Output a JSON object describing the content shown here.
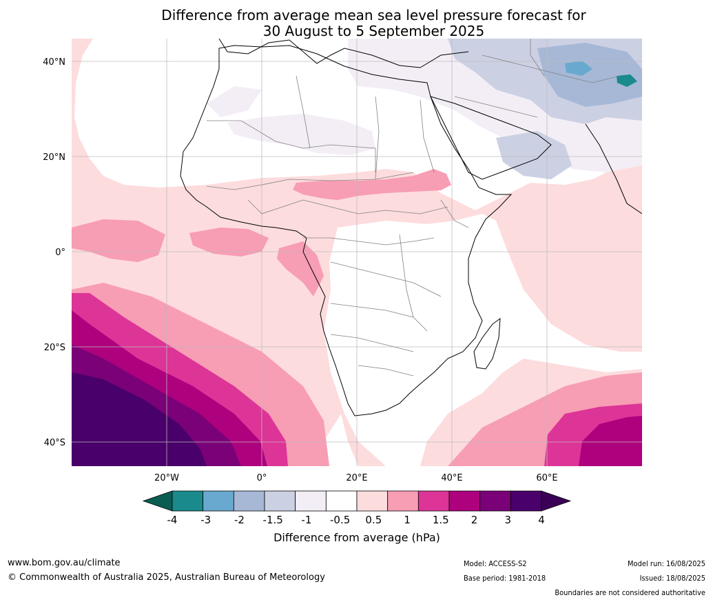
{
  "title": {
    "line1": "Difference from average mean sea level pressure forecast for",
    "line2": "30 August to 5 September 2025"
  },
  "map": {
    "lat_labels": [
      "40°N",
      "20°N",
      "0°",
      "20°S",
      "40°S"
    ],
    "lon_labels": [
      "20°W",
      "0°",
      "20°E",
      "40°E",
      "60°E"
    ]
  },
  "legend": {
    "tick_labels": [
      "-4",
      "-3",
      "-2",
      "-1.5",
      "-1",
      "-0.5",
      "0.5",
      "1",
      "1.5",
      "2",
      "3",
      "4"
    ],
    "colors": [
      "#1a8a8c",
      "#69a9d0",
      "#a6b8d6",
      "#ccd0e3",
      "#f3eef5",
      "#ffffff",
      "#fddcdd",
      "#f79db4",
      "#dd3497",
      "#ae017e",
      "#7a0177",
      "#49006a"
    ],
    "under_color": "#0b5d52",
    "over_color": "#3a0055",
    "label": "Difference from average (hPa)"
  },
  "footer": {
    "website": "www.bom.gov.au/climate",
    "copyright": "© Commonwealth of Australia 2025, Australian Bureau of Meteorology",
    "model": "Model: ACCESS-S2",
    "base_period": "Base period: 1981-2018",
    "model_run": "Model run: 16/08/2025",
    "issued": "Issued: 18/08/2025",
    "disclaimer": "Boundaries are not considered authoritative"
  }
}
